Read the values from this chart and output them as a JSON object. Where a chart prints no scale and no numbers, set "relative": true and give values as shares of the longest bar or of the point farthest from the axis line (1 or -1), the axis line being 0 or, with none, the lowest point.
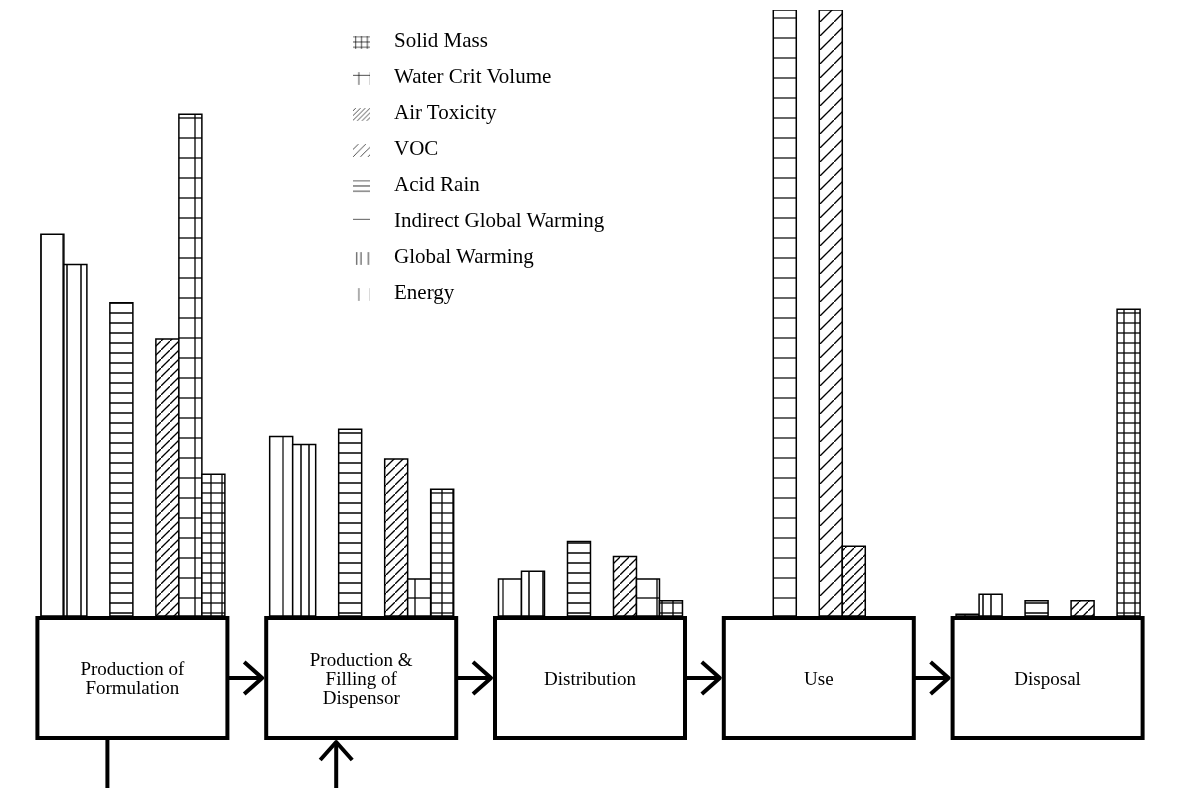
{
  "chart_data": {
    "type": "bar",
    "relative": true,
    "legend": "top",
    "categories": [
      "Production of Formulation",
      "Production & Filling of Dispensor",
      "Distribution",
      "Use",
      "Disposal"
    ],
    "series": [
      {
        "name": "Energy",
        "color": "#000000",
        "values": [
          0.63,
          0.296,
          0.061,
          null,
          0.003
        ]
      },
      {
        "name": "Global Warming",
        "color": "#000000",
        "values": [
          0.58,
          0.283,
          0.074,
          null,
          0.036
        ]
      },
      {
        "name": "Indirect Global Warming",
        "color": "#000000",
        "values": [
          null,
          null,
          null,
          1,
          null
        ]
      },
      {
        "name": "Acid Rain",
        "color": "#000000",
        "values": [
          0.517,
          0.308,
          0.123,
          null,
          0.025
        ]
      },
      {
        "name": "VOC",
        "color": "#000000",
        "values": [
          null,
          null,
          null,
          1,
          null
        ]
      },
      {
        "name": "Air Toxicity",
        "color": "#000000",
        "values": [
          0.457,
          0.259,
          0.098,
          0.115,
          0.025
        ]
      },
      {
        "name": "Water Crit Volume",
        "color": "#000000",
        "values": [
          0.828,
          0.061,
          0.061,
          null,
          null
        ]
      },
      {
        "name": "Solid Mass",
        "color": "#000000",
        "values": [
          0.234,
          0.209,
          0.025,
          null,
          0.506
        ]
      }
    ]
  }
}
